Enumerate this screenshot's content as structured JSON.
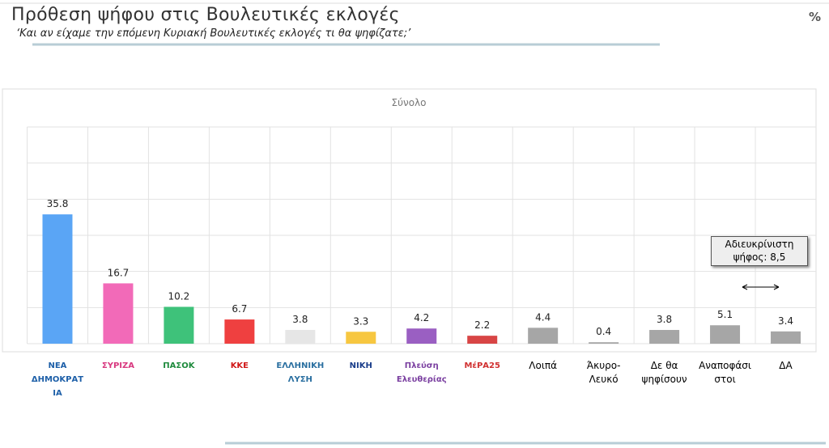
{
  "chart_data": {
    "type": "bar",
    "title": "Πρόθεση ψήφου στις Βουλευτικές εκλογές",
    "subtitle": "‘Και αν είχαμε την επόμενη Κυριακή Βουλευτικές εκλογές τι θα ψηφίζατε;’",
    "unit": "%",
    "panel_title": "Σύνολο",
    "categories": [
      "ΝΕΑ ΔΗΜΟΚΡΑΤΙΑ",
      "ΣΥΡΙΖΑ",
      "ΠΑΣΟΚ",
      "ΚΚΕ",
      "ΕΛΛΗΝΙΚΗ ΛΥΣΗ",
      "ΝΙΚΗ",
      "Πλεύση Ελευθερίας",
      "ΜέΡΑ25",
      "Λοιπά",
      "Άκυρο-Λευκό",
      "Δε θα ψηφίσουν",
      "Αναποφάσιστοι",
      "ΔΑ"
    ],
    "values": [
      35.8,
      16.7,
      10.2,
      6.7,
      3.8,
      3.3,
      4.2,
      2.2,
      4.4,
      0.4,
      3.8,
      5.1,
      3.4
    ],
    "colors": [
      "#5aa5f5",
      "#f26ab8",
      "#3ec27a",
      "#ef4040",
      "#e6e6e6",
      "#f7c740",
      "#9a5fc2",
      "#d84545",
      "#a6a6a6",
      "#a6a6a6",
      "#a6a6a6",
      "#a6a6a6",
      "#a6a6a6"
    ],
    "annotation": "Αδιευκρίνιστη ψήφος: 8,5",
    "ylim": [
      0,
      60
    ],
    "yticks": [
      0,
      10,
      20,
      30,
      40,
      50,
      60
    ],
    "grid": true
  }
}
